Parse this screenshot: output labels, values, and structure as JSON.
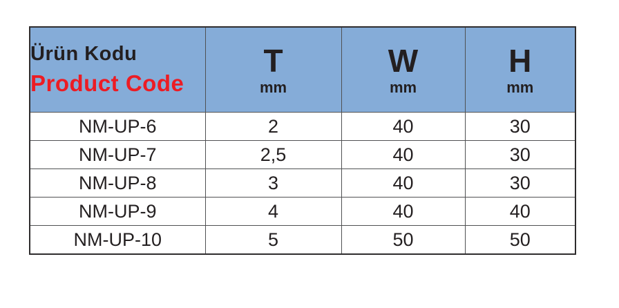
{
  "colors": {
    "header_background": "#85acd8",
    "product_code_red": "#ec1c24",
    "text_dark": "#231f20",
    "grid_border": "#4f5052"
  },
  "table": {
    "header": {
      "product_code_tr": "Ürün Kodu",
      "product_code_en": "Product Code",
      "columns": [
        {
          "label": "T",
          "unit": "mm"
        },
        {
          "label": "W",
          "unit": "mm"
        },
        {
          "label": "H",
          "unit": "mm"
        }
      ]
    },
    "rows": [
      {
        "code": "NM-UP-6",
        "t": "2",
        "w": "40",
        "h": "30"
      },
      {
        "code": "NM-UP-7",
        "t": "2,5",
        "w": "40",
        "h": "30"
      },
      {
        "code": "NM-UP-8",
        "t": "3",
        "w": "40",
        "h": "30"
      },
      {
        "code": "NM-UP-9",
        "t": "4",
        "w": "40",
        "h": "40"
      },
      {
        "code": "NM-UP-10",
        "t": "5",
        "w": "50",
        "h": "50"
      }
    ]
  }
}
